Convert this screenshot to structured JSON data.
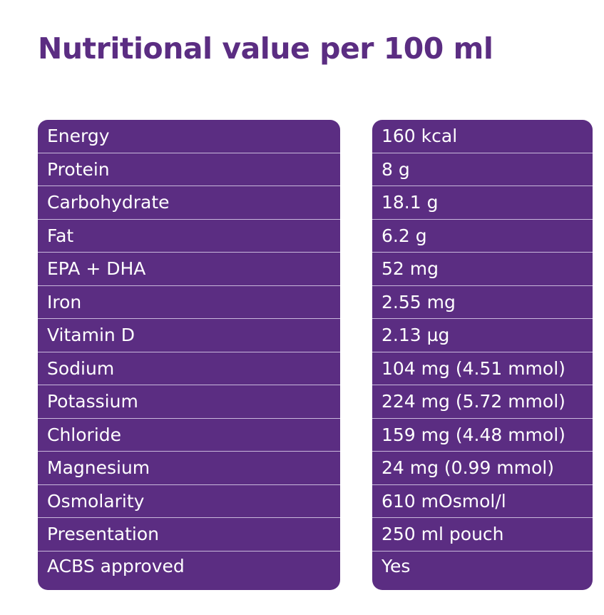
{
  "title": "Nutritional value per 100 ml",
  "colors": {
    "brand_purple": "#5b2d82",
    "text_on_purple": "#ffffff",
    "divider": "#c9b8dc"
  },
  "rows": [
    {
      "label": "Energy",
      "value": "160 kcal"
    },
    {
      "label": "Protein",
      "value": "8 g"
    },
    {
      "label": "Carbohydrate",
      "value": "18.1 g"
    },
    {
      "label": "Fat",
      "value": "6.2 g"
    },
    {
      "label": "EPA + DHA",
      "value": "52 mg"
    },
    {
      "label": "Iron",
      "value": "2.55 mg"
    },
    {
      "label": "Vitamin D",
      "value": "2.13 µg"
    },
    {
      "label": "Sodium",
      "value": "104 mg (4.51 mmol)"
    },
    {
      "label": "Potassium",
      "value": "224 mg (5.72 mmol)"
    },
    {
      "label": "Chloride",
      "value": "159 mg (4.48 mmol)"
    },
    {
      "label": "Magnesium",
      "value": "24 mg (0.99 mmol)"
    },
    {
      "label": "Osmolarity",
      "value": "610 mOsmol/l"
    },
    {
      "label": "Presentation",
      "value": "250 ml pouch"
    },
    {
      "label": "ACBS approved",
      "value": "Yes"
    }
  ]
}
